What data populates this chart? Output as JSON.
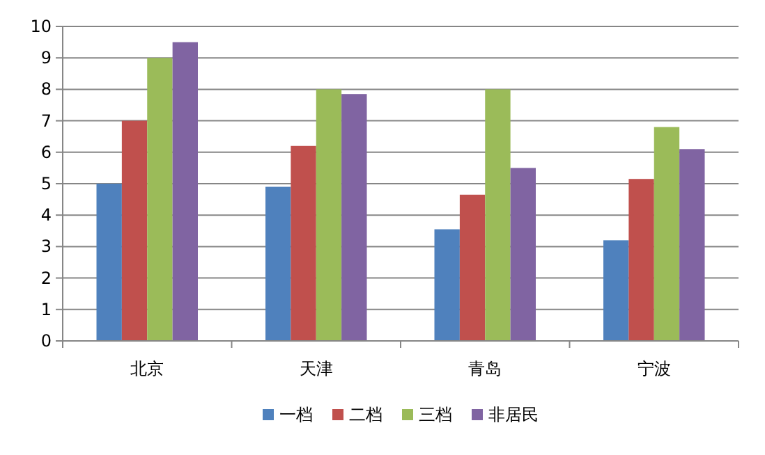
{
  "chart_data": {
    "type": "bar",
    "categories": [
      "北京",
      "天津",
      "青岛",
      "宁波"
    ],
    "series": [
      {
        "name": "一档",
        "color": "#4f81bd",
        "values": [
          5.0,
          4.9,
          3.55,
          3.2
        ]
      },
      {
        "name": "二档",
        "color": "#c0504d",
        "values": [
          7.0,
          6.2,
          4.65,
          5.15
        ]
      },
      {
        "name": "三档",
        "color": "#9bbb59",
        "values": [
          9.0,
          8.0,
          8.0,
          6.8
        ]
      },
      {
        "name": "非居民",
        "color": "#8064a2",
        "values": [
          9.5,
          7.85,
          5.5,
          6.1
        ]
      }
    ],
    "ylim": [
      0,
      10
    ],
    "yticks": [
      0,
      1,
      2,
      3,
      4,
      5,
      6,
      7,
      8,
      9,
      10
    ],
    "grid": "y",
    "legend": "bottom"
  }
}
